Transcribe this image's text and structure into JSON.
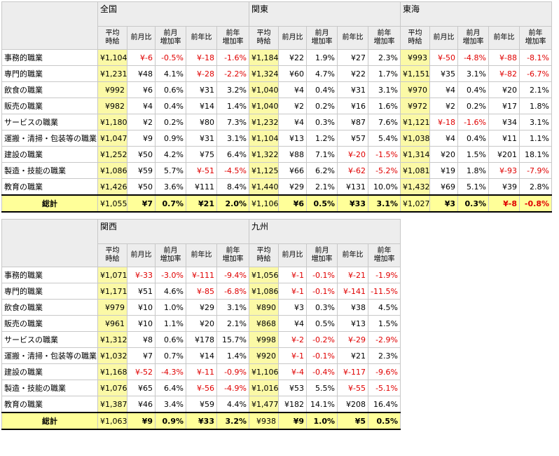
{
  "columns": [
    "平均\n時給",
    "前月比",
    "前月\n増加率",
    "前年比",
    "前年\n増加率"
  ],
  "row_labels": [
    "事務的職業",
    "専門的職業",
    "飲食の職業",
    "販売の職業",
    "サービスの職業",
    "運搬・清掃・包装等の職業",
    "建設の職業",
    "製造・技能の職業",
    "教育の職業"
  ],
  "total_label": "総計",
  "tables": [
    {
      "regions": [
        "全国",
        "関東",
        "東海"
      ],
      "rows": [
        [
          "¥1,104",
          "¥-6",
          "-0.5%",
          "¥-18",
          "-1.6%",
          "¥1,184",
          "¥22",
          "1.9%",
          "¥27",
          "2.3%",
          "¥993",
          "¥-50",
          "-4.8%",
          "¥-88",
          "-8.1%"
        ],
        [
          "¥1,231",
          "¥48",
          "4.1%",
          "¥-28",
          "-2.2%",
          "¥1,324",
          "¥60",
          "4.7%",
          "¥22",
          "1.7%",
          "¥1,151",
          "¥35",
          "3.1%",
          "¥-82",
          "-6.7%"
        ],
        [
          "¥992",
          "¥6",
          "0.6%",
          "¥31",
          "3.2%",
          "¥1,040",
          "¥4",
          "0.4%",
          "¥31",
          "3.1%",
          "¥970",
          "¥4",
          "0.4%",
          "¥20",
          "2.1%"
        ],
        [
          "¥982",
          "¥4",
          "0.4%",
          "¥14",
          "1.4%",
          "¥1,040",
          "¥2",
          "0.2%",
          "¥16",
          "1.6%",
          "¥972",
          "¥2",
          "0.2%",
          "¥17",
          "1.8%"
        ],
        [
          "¥1,180",
          "¥2",
          "0.2%",
          "¥80",
          "7.3%",
          "¥1,232",
          "¥4",
          "0.3%",
          "¥87",
          "7.6%",
          "¥1,121",
          "¥-18",
          "-1.6%",
          "¥34",
          "3.1%"
        ],
        [
          "¥1,047",
          "¥9",
          "0.9%",
          "¥31",
          "3.1%",
          "¥1,104",
          "¥13",
          "1.2%",
          "¥57",
          "5.4%",
          "¥1,038",
          "¥4",
          "0.4%",
          "¥11",
          "1.1%"
        ],
        [
          "¥1,252",
          "¥50",
          "4.2%",
          "¥75",
          "6.4%",
          "¥1,322",
          "¥88",
          "7.1%",
          "¥-20",
          "-1.5%",
          "¥1,314",
          "¥20",
          "1.5%",
          "¥201",
          "18.1%"
        ],
        [
          "¥1,086",
          "¥59",
          "5.7%",
          "¥-51",
          "-4.5%",
          "¥1,125",
          "¥66",
          "6.2%",
          "¥-62",
          "-5.2%",
          "¥1,081",
          "¥19",
          "1.8%",
          "¥-93",
          "-7.9%"
        ],
        [
          "¥1,426",
          "¥50",
          "3.6%",
          "¥111",
          "8.4%",
          "¥1,440",
          "¥29",
          "2.1%",
          "¥131",
          "10.0%",
          "¥1,432",
          "¥69",
          "5.1%",
          "¥39",
          "2.8%"
        ]
      ],
      "total": [
        "¥1,055",
        "¥7",
        "0.7%",
        "¥21",
        "2.0%",
        "¥1,106",
        "¥6",
        "0.5%",
        "¥33",
        "3.1%",
        "¥1,027",
        "¥3",
        "0.3%",
        "¥-8",
        "-0.8%"
      ]
    },
    {
      "regions": [
        "関西",
        "九州"
      ],
      "rows": [
        [
          "¥1,071",
          "¥-33",
          "-3.0%",
          "¥-111",
          "-9.4%",
          "¥1,056",
          "¥-1",
          "-0.1%",
          "¥-21",
          "-1.9%"
        ],
        [
          "¥1,171",
          "¥51",
          "4.6%",
          "¥-85",
          "-6.8%",
          "¥1,086",
          "¥-1",
          "-0.1%",
          "¥-141",
          "-11.5%"
        ],
        [
          "¥979",
          "¥10",
          "1.0%",
          "¥29",
          "3.1%",
          "¥890",
          "¥3",
          "0.3%",
          "¥38",
          "4.5%"
        ],
        [
          "¥961",
          "¥10",
          "1.1%",
          "¥20",
          "2.1%",
          "¥868",
          "¥4",
          "0.5%",
          "¥13",
          "1.5%"
        ],
        [
          "¥1,312",
          "¥8",
          "0.6%",
          "¥178",
          "15.7%",
          "¥998",
          "¥-2",
          "-0.2%",
          "¥-29",
          "-2.9%"
        ],
        [
          "¥1,032",
          "¥7",
          "0.7%",
          "¥14",
          "1.4%",
          "¥920",
          "¥-1",
          "-0.1%",
          "¥21",
          "2.3%"
        ],
        [
          "¥1,168",
          "¥-52",
          "-4.3%",
          "¥-11",
          "-0.9%",
          "¥1,106",
          "¥-4",
          "-0.4%",
          "¥-117",
          "-9.6%"
        ],
        [
          "¥1,076",
          "¥65",
          "6.4%",
          "¥-56",
          "-4.9%",
          "¥1,016",
          "¥53",
          "5.5%",
          "¥-55",
          "-5.1%"
        ],
        [
          "¥1,387",
          "¥46",
          "3.4%",
          "¥59",
          "4.4%",
          "¥1,477",
          "¥182",
          "14.1%",
          "¥208",
          "16.4%"
        ]
      ],
      "total": [
        "¥1,063",
        "¥9",
        "0.9%",
        "¥33",
        "3.2%",
        "¥938",
        "¥9",
        "1.0%",
        "¥5",
        "0.5%"
      ]
    }
  ]
}
